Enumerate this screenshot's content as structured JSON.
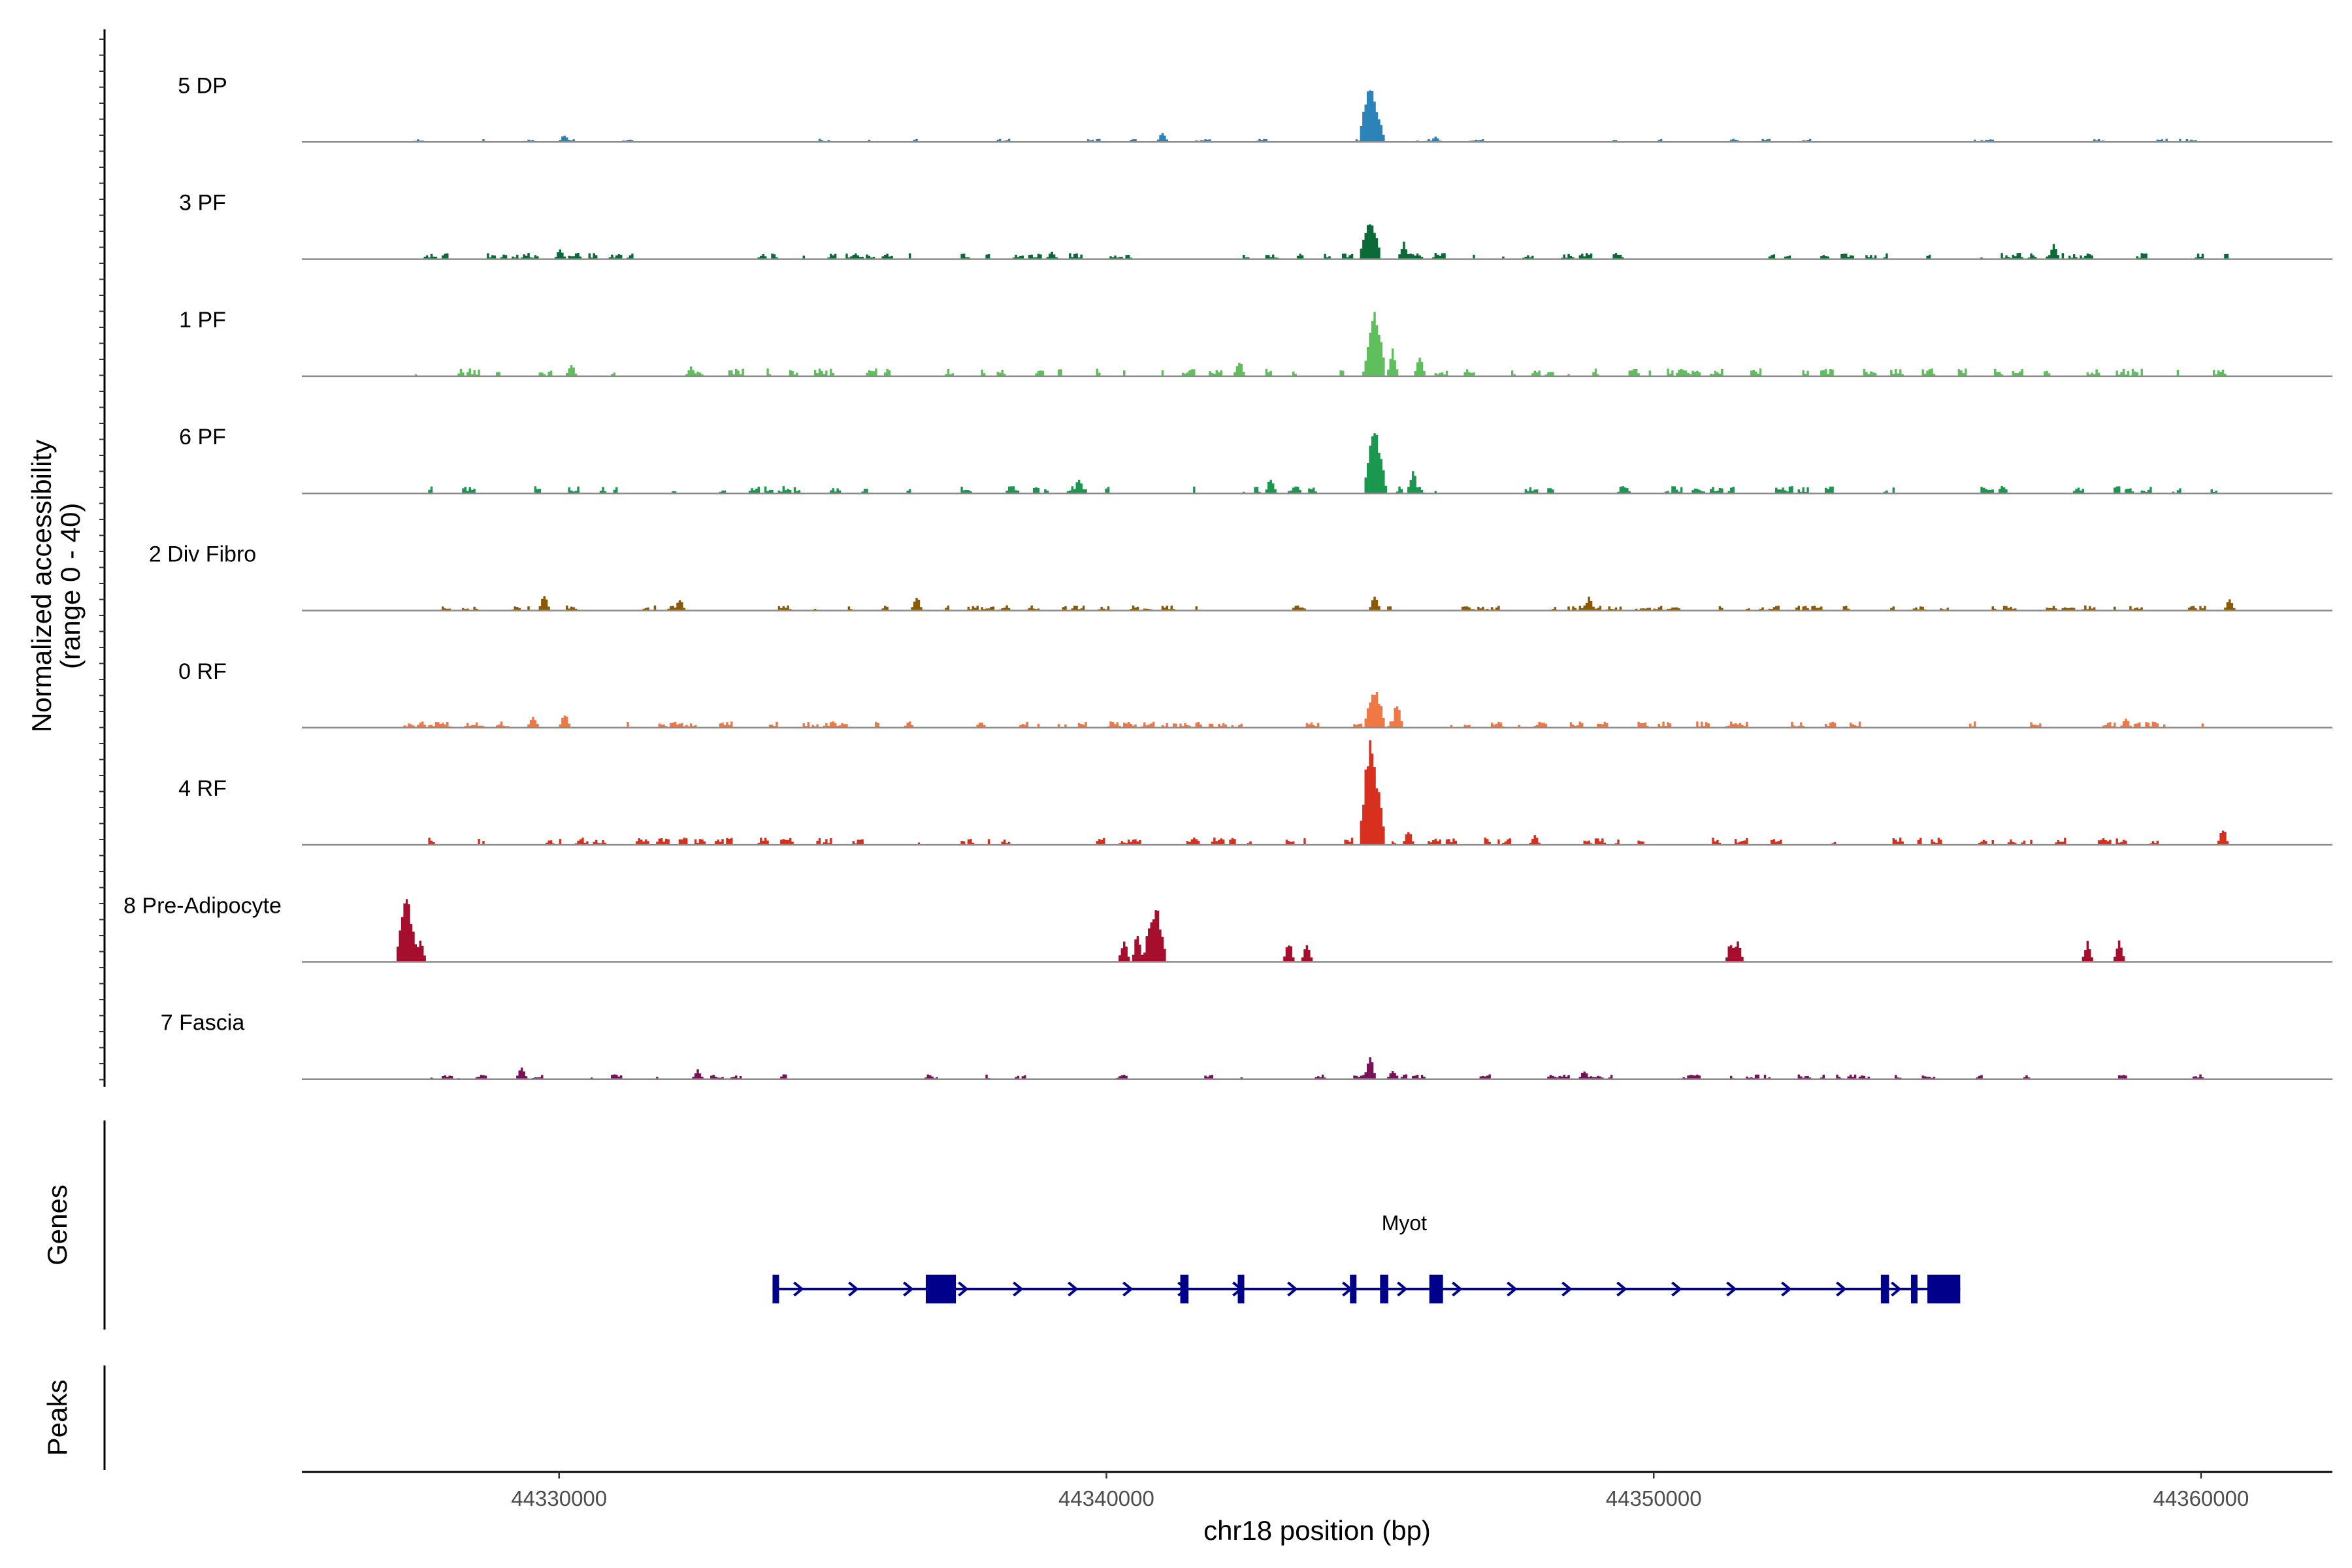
{
  "chart_data": {
    "type": "area",
    "title": "",
    "xlabel": "chr18 position (bp)",
    "ylabel": "Normalized accessibility\n(range 0 - 40)",
    "ylim": [
      0,
      40
    ],
    "xlim": [
      44325300,
      44362400
    ],
    "x_ticks": [
      44330000,
      44340000,
      44350000,
      44360000
    ],
    "x_tick_labels": [
      "44330000",
      "44340000",
      "44350000",
      "44360000"
    ],
    "genes_label": "Genes",
    "peaks_label": "Peaks",
    "tracks": [
      {
        "name": "5 DP",
        "color": "#2b83ba",
        "range": [
          44327000,
          44360600
        ],
        "base": 0.6,
        "density": 0.35,
        "seed": 11,
        "peaks": [
          [
            44330100,
            4
          ],
          [
            44341000,
            5
          ],
          [
            44344800,
            32
          ],
          [
            44344950,
            14
          ],
          [
            44346000,
            3
          ]
        ]
      },
      {
        "name": "3 PF",
        "color": "#0b6b36",
        "range": [
          44327000,
          44360600
        ],
        "base": 1.2,
        "density": 0.65,
        "seed": 23,
        "peaks": [
          [
            44330000,
            5
          ],
          [
            44335400,
            3
          ],
          [
            44339000,
            4
          ],
          [
            44344800,
            22
          ],
          [
            44345400,
            9
          ],
          [
            44357300,
            8
          ]
        ]
      },
      {
        "name": "1 PF",
        "color": "#5fbf5c",
        "range": [
          44327200,
          44360400
        ],
        "base": 1.5,
        "density": 0.7,
        "seed": 37,
        "peaks": [
          [
            44330200,
            6
          ],
          [
            44332400,
            5
          ],
          [
            44342400,
            9
          ],
          [
            44344900,
            36
          ],
          [
            44345200,
            14
          ],
          [
            44345700,
            10
          ]
        ]
      },
      {
        "name": "6 PF",
        "color": "#1a9850",
        "range": [
          44327300,
          44360500
        ],
        "base": 1.4,
        "density": 0.6,
        "seed": 41,
        "peaks": [
          [
            44339500,
            8
          ],
          [
            44343000,
            8
          ],
          [
            44344900,
            36
          ],
          [
            44345000,
            18
          ],
          [
            44345600,
            12
          ]
        ]
      },
      {
        "name": "2 Div Fibro",
        "color": "#8b5a00",
        "range": [
          44327800,
          44360600
        ],
        "base": 1.0,
        "density": 0.55,
        "seed": 53,
        "peaks": [
          [
            44329700,
            8
          ],
          [
            44332200,
            6
          ],
          [
            44336500,
            8
          ],
          [
            44344900,
            8
          ],
          [
            44348800,
            7
          ],
          [
            44360500,
            6
          ]
        ]
      },
      {
        "name": "0 RF",
        "color": "#f07844",
        "range": [
          44327000,
          44360600
        ],
        "base": 1.2,
        "density": 0.6,
        "seed": 67,
        "peaks": [
          [
            44329500,
            7
          ],
          [
            44330100,
            8
          ],
          [
            44335000,
            4
          ],
          [
            44344900,
            22
          ],
          [
            44345300,
            14
          ],
          [
            44358600,
            5
          ]
        ]
      },
      {
        "name": "4 RF",
        "color": "#d7301f",
        "range": [
          44327000,
          44360600
        ],
        "base": 1.4,
        "density": 0.65,
        "seed": 71,
        "peaks": [
          [
            44344800,
            55
          ],
          [
            44344900,
            40
          ],
          [
            44345500,
            8
          ],
          [
            44347800,
            5
          ],
          [
            44360400,
            9
          ]
        ]
      },
      {
        "name": "8 Pre-Adipocyte",
        "color": "#a50f2d",
        "range": [
          44327000,
          44360600
        ],
        "base": 0.0,
        "density": 0.0,
        "seed": 83,
        "peaks": [
          [
            44327200,
            34
          ],
          [
            44327450,
            12
          ],
          [
            44340300,
            12
          ],
          [
            44340550,
            16
          ],
          [
            44340750,
            18
          ],
          [
            44340900,
            28
          ],
          [
            44343300,
            11
          ],
          [
            44343650,
            11
          ],
          [
            44351400,
            11
          ],
          [
            44351500,
            11
          ],
          [
            44357900,
            11
          ],
          [
            44358500,
            11
          ]
        ]
      },
      {
        "name": "7 Fascia",
        "color": "#7a0f5a",
        "range": [
          44327500,
          44360600
        ],
        "base": 0.9,
        "density": 0.45,
        "seed": 97,
        "peaks": [
          [
            44329300,
            6
          ],
          [
            44332500,
            5
          ],
          [
            44344800,
            14
          ],
          [
            44345200,
            5
          ],
          [
            44348700,
            5
          ]
        ]
      }
    ],
    "genes": [
      {
        "name": "Myot",
        "strand": "+",
        "start": 44333900,
        "end": 44355600,
        "exons": [
          [
            44333900,
            44334000
          ],
          [
            44336700,
            44337250
          ],
          [
            44341350,
            44341500
          ],
          [
            44342400,
            44342500
          ],
          [
            44344450,
            44344500
          ],
          [
            44345000,
            44345150
          ],
          [
            44345900,
            44346150
          ],
          [
            44354150,
            44354300
          ],
          [
            44354700,
            44354800
          ],
          [
            44355000,
            44355600
          ]
        ]
      }
    ]
  }
}
